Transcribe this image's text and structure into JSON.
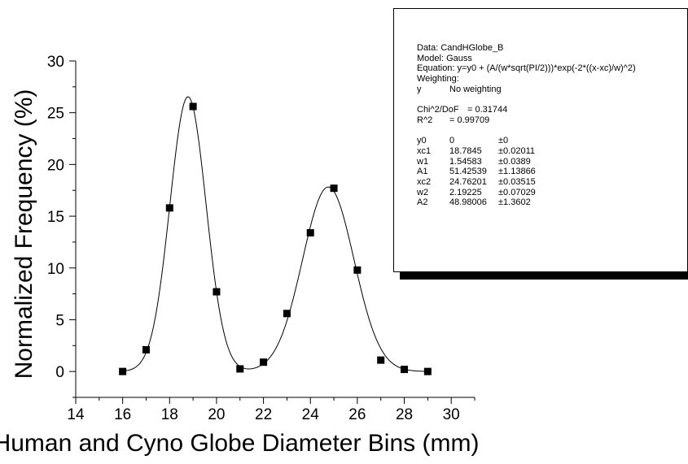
{
  "chart_data": {
    "type": "scatter",
    "xlabel": "Human and Cyno Globe Diameter Bins (mm)",
    "ylabel": "Normalized Frequency (%)",
    "xlim": [
      14,
      31
    ],
    "ylim": [
      -2.5,
      30
    ],
    "xticks": [
      "14",
      "16",
      "18",
      "20",
      "22",
      "24",
      "26",
      "28",
      "30"
    ],
    "yticks": [
      "0",
      "5",
      "10",
      "15",
      "20",
      "25",
      "30"
    ],
    "grid": false,
    "marker": "filled-square",
    "series": [
      {
        "x": [
          16,
          17,
          18,
          19,
          20,
          21,
          22,
          23,
          24,
          25,
          26,
          27,
          28,
          29
        ],
        "values": [
          0.0,
          2.1,
          15.8,
          25.6,
          7.7,
          0.25,
          0.9,
          5.6,
          13.4,
          17.7,
          9.8,
          1.1,
          0.2,
          0.0
        ]
      }
    ],
    "fit_curve": {
      "model": "Gauss",
      "y0": 0,
      "peaks": [
        {
          "xc": 18.7845,
          "w": 1.54583,
          "A": 51.42539
        },
        {
          "xc": 24.76201,
          "w": 2.19225,
          "A": 48.98006
        }
      ]
    }
  },
  "fit_results": {
    "header": [
      "Data: CandHGlobe_B",
      "Model: Gauss",
      "Equation: y=y0 + (A/(w*sqrt(PI/2)))*exp(-2*((x-xc)/w)^2)",
      "Weighting:"
    ],
    "weighting": {
      "var": "y",
      "value": "No weighting"
    },
    "chi2_label": "Chi^2/DoF",
    "chi2_value": "= 0.31744",
    "r2_label": "R^2",
    "r2_value": "= 0.99709",
    "params": [
      {
        "name": "y0",
        "value": "0",
        "err": "±0"
      },
      {
        "name": "xc1",
        "value": "18.7845",
        "err": "±0.02011"
      },
      {
        "name": "w1",
        "value": "1.54583",
        "err": "±0.0389"
      },
      {
        "name": "A1",
        "value": "51.42539",
        "err": "±1.13866"
      },
      {
        "name": "xc2",
        "value": "24.76201",
        "err": "±0.03515"
      },
      {
        "name": "w2",
        "value": "2.19225",
        "err": "±0.07029"
      },
      {
        "name": "A2",
        "value": "48.98006",
        "err": "±1.3602"
      }
    ]
  }
}
